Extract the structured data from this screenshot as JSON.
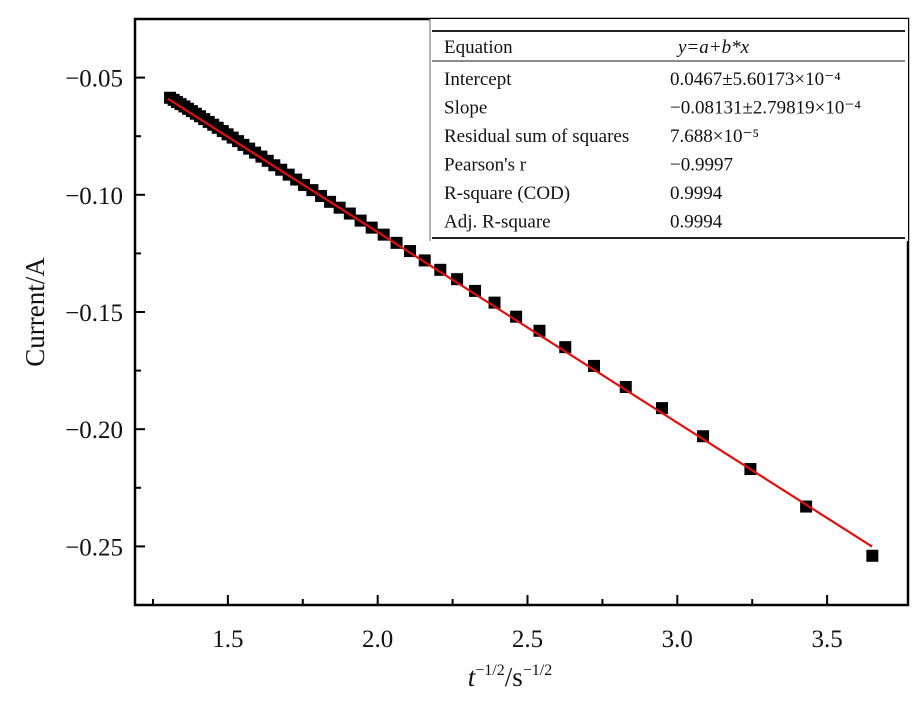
{
  "chart_data": {
    "type": "scatter",
    "title": "",
    "xlabel": {
      "base": "t",
      "sup1": "−1/2",
      "unit": "/s",
      "sup2": "−1/2"
    },
    "ylabel": "Current/A",
    "xlim": [
      1.19,
      3.77
    ],
    "ylim": [
      -0.275,
      -0.025
    ],
    "x_ticks": [
      1.5,
      2.0,
      2.5,
      3.0,
      3.5
    ],
    "x_tick_labels": [
      "1.5",
      "2.0",
      "2.5",
      "3.0",
      "3.5"
    ],
    "x_minor_ticks": [
      1.25,
      1.75,
      2.25,
      2.75,
      3.25
    ],
    "y_ticks": [
      -0.05,
      -0.1,
      -0.15,
      -0.2,
      -0.25
    ],
    "y_tick_labels": [
      "−0.05",
      "−0.10",
      "−0.15",
      "−0.20",
      "−0.25"
    ],
    "y_minor_ticks": [
      -0.075,
      -0.125,
      -0.175,
      -0.225
    ],
    "grid": false,
    "colors": {
      "points": "#000000",
      "fit": "#e01010",
      "axis": "#000000"
    },
    "series": [
      {
        "name": "data",
        "marker": "square",
        "x": [
          3.651,
          3.43,
          3.244,
          3.086,
          2.949,
          2.828,
          2.722,
          2.626,
          2.54,
          2.462,
          2.39,
          2.325,
          2.265,
          2.209,
          2.157,
          2.108,
          2.063,
          2.02,
          1.98,
          1.943,
          1.907,
          1.873,
          1.841,
          1.811,
          1.782,
          1.754,
          1.728,
          1.703,
          1.678,
          1.655,
          1.633,
          1.612,
          1.591,
          1.571,
          1.552,
          1.534,
          1.516,
          1.499,
          1.483,
          1.466,
          1.451,
          1.436,
          1.421,
          1.407,
          1.393,
          1.38,
          1.367,
          1.355,
          1.342,
          1.33,
          1.319,
          1.307
        ],
        "y": [
          -0.254,
          -0.233,
          -0.217,
          -0.203,
          -0.191,
          -0.182,
          -0.173,
          -0.165,
          -0.158,
          -0.152,
          -0.146,
          -0.141,
          -0.136,
          -0.132,
          -0.128,
          -0.124,
          -0.1205,
          -0.117,
          -0.114,
          -0.111,
          -0.108,
          -0.1055,
          -0.103,
          -0.1005,
          -0.098,
          -0.0958,
          -0.0935,
          -0.0914,
          -0.0893,
          -0.0874,
          -0.0855,
          -0.0837,
          -0.082,
          -0.0803,
          -0.0787,
          -0.0771,
          -0.0756,
          -0.0742,
          -0.0728,
          -0.0714,
          -0.0701,
          -0.0689,
          -0.0677,
          -0.0665,
          -0.0654,
          -0.0643,
          -0.0633,
          -0.0623,
          -0.0613,
          -0.0604,
          -0.0595,
          -0.0586
        ]
      },
      {
        "name": "linear fit",
        "type": "line",
        "intercept": 0.0467,
        "slope": -0.08131,
        "x_range": [
          1.3,
          3.65
        ]
      }
    ],
    "fit_table": {
      "header": [
        "Equation",
        "y=a+b*x"
      ],
      "rows": [
        [
          "Intercept",
          "0.0467±5.60173×10⁻⁴"
        ],
        [
          "Slope",
          "−0.08131±2.79819×10⁻⁴"
        ],
        [
          "Residual sum of squares",
          "7.688×10⁻⁵"
        ],
        [
          "Pearson's r",
          "−0.9997"
        ],
        [
          "R-square (COD)",
          "0.9994"
        ],
        [
          "Adj. R-square",
          "0.9994"
        ]
      ]
    }
  }
}
